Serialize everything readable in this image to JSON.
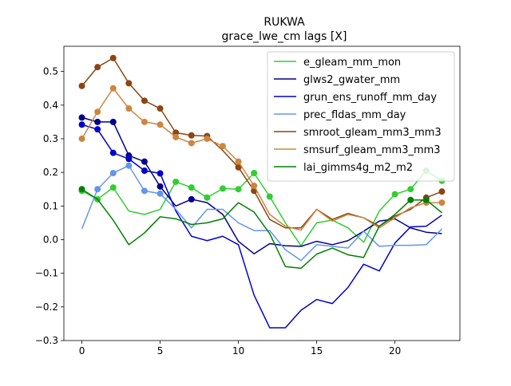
{
  "chart_data": {
    "type": "line",
    "title": "RUKWA",
    "subtitle": "grace_lwe_cm lags [X]",
    "xlabel": "",
    "ylabel": "",
    "xlim": [
      -1.15,
      24.15
    ],
    "ylim": [
      -0.3,
      0.575
    ],
    "x_ticks": [
      0,
      5,
      10,
      15,
      20
    ],
    "x_tick_labels": [
      "0",
      "5",
      "10",
      "15",
      "20"
    ],
    "y_ticks": [
      -0.3,
      -0.2,
      -0.1,
      0.0,
      0.1,
      0.2,
      0.3,
      0.4,
      0.5
    ],
    "y_tick_labels": [
      "−0.3",
      "−0.2",
      "−0.1",
      "0.0",
      "0.1",
      "0.2",
      "0.3",
      "0.4",
      "0.5"
    ],
    "grid": false,
    "legend_position": "top-right",
    "x": [
      0,
      1,
      2,
      3,
      4,
      5,
      6,
      7,
      8,
      9,
      10,
      11,
      12,
      13,
      14,
      15,
      16,
      17,
      18,
      19,
      20,
      21,
      22,
      23
    ],
    "series": [
      {
        "name": "e_gleam_mm_mon",
        "color": "#32cd32",
        "values": [
          0.145,
          0.12,
          0.155,
          0.085,
          0.075,
          0.09,
          0.172,
          0.155,
          0.125,
          0.152,
          0.15,
          0.198,
          0.128,
          0.05,
          -0.018,
          0.05,
          0.058,
          0.035,
          -0.008,
          0.085,
          0.135,
          0.15,
          0.205,
          0.175
        ],
        "markers": [
          0,
          1,
          2,
          6,
          7,
          8,
          9,
          10,
          11,
          12,
          20,
          21,
          22,
          23
        ]
      },
      {
        "name": "glws2_gwater_mm",
        "color": "#00008b",
        "values": [
          0.363,
          0.35,
          0.35,
          0.25,
          0.232,
          0.158,
          0.1,
          0.12,
          0.11,
          0.075,
          -0.005,
          -0.042,
          -0.012,
          -0.018,
          -0.02,
          -0.005,
          -0.015,
          -0.003,
          0.025,
          0.055,
          0.062,
          0.035,
          0.022,
          0.018
        ],
        "markers": [
          0,
          1,
          2,
          3,
          4,
          5,
          7
        ]
      },
      {
        "name": "grun_ens_runoff_mm_day",
        "color": "#0000cd",
        "values": [
          0.342,
          0.328,
          0.258,
          0.24,
          0.205,
          0.197,
          0.085,
          0.01,
          -0.003,
          0.01,
          -0.015,
          -0.165,
          -0.262,
          -0.262,
          -0.21,
          -0.178,
          -0.19,
          -0.142,
          -0.073,
          -0.093,
          -0.01,
          0.038,
          0.04,
          0.073
        ],
        "markers": [
          0,
          1,
          2,
          3,
          4,
          5
        ]
      },
      {
        "name": "prec_fldas_mm_day",
        "color": "#6495ed",
        "values": [
          0.032,
          0.15,
          0.198,
          0.22,
          0.145,
          0.137,
          0.09,
          0.035,
          0.09,
          0.09,
          0.05,
          0.027,
          0.027,
          -0.03,
          -0.062,
          -0.015,
          -0.02,
          -0.025,
          0.025,
          -0.02,
          -0.017,
          -0.017,
          -0.015,
          0.032
        ],
        "markers": [
          1,
          2,
          3,
          4,
          5
        ]
      },
      {
        "name": "smroot_gleam_mm3_mm3",
        "color": "#8b4513",
        "values": [
          0.457,
          0.513,
          0.54,
          0.465,
          0.413,
          0.39,
          0.318,
          0.31,
          0.308,
          0.265,
          0.215,
          0.145,
          0.06,
          0.035,
          0.035,
          0.09,
          0.06,
          0.078,
          0.065,
          0.04,
          0.07,
          0.09,
          0.125,
          0.143
        ],
        "markers": [
          0,
          1,
          2,
          3,
          4,
          5,
          6,
          7,
          8,
          10,
          11,
          22,
          23
        ]
      },
      {
        "name": "smsurf_gleam_mm3_mm3",
        "color": "#cd853f",
        "values": [
          0.3,
          0.38,
          0.45,
          0.39,
          0.35,
          0.342,
          0.305,
          0.287,
          0.3,
          0.278,
          0.232,
          0.16,
          0.075,
          0.04,
          0.028,
          0.09,
          0.055,
          0.075,
          0.065,
          0.035,
          0.065,
          0.095,
          0.11,
          0.11
        ],
        "markers": [
          0,
          1,
          2,
          3,
          4,
          5,
          6,
          7,
          8,
          9,
          10,
          11,
          22,
          23
        ]
      },
      {
        "name": "lai_gimms4g_m2_m2",
        "color": "#008000",
        "values": [
          0.15,
          0.12,
          0.058,
          -0.015,
          0.02,
          0.068,
          0.062,
          0.045,
          0.05,
          0.062,
          0.11,
          0.082,
          0.018,
          -0.08,
          -0.085,
          -0.043,
          -0.025,
          -0.045,
          -0.053,
          0.04,
          0.075,
          0.118,
          0.118,
          0.08
        ],
        "markers": [
          0,
          21,
          22
        ]
      }
    ]
  }
}
